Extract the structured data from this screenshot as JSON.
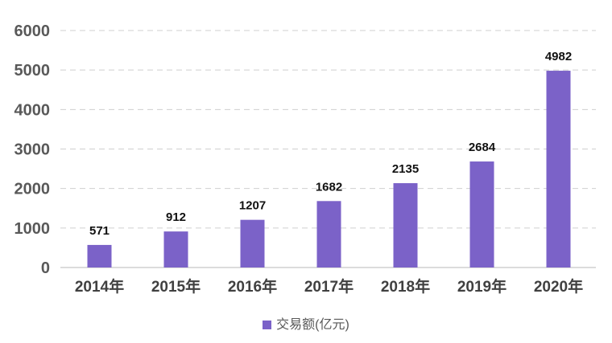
{
  "chart_data": {
    "type": "bar",
    "categories": [
      "2014年",
      "2015年",
      "2016年",
      "2017年",
      "2018年",
      "2019年",
      "2020年"
    ],
    "series": [
      {
        "name": "交易额(亿元)",
        "values": [
          571,
          912,
          1207,
          1682,
          2135,
          2684,
          4982
        ]
      }
    ],
    "yticks": [
      "0",
      "1000",
      "2000",
      "3000",
      "4000",
      "5000",
      "6000"
    ],
    "ylim": [
      0,
      6000
    ],
    "grid": true,
    "legend": "bottom",
    "color": "#7b62c8",
    "title": "",
    "xlabel": "",
    "ylabel": ""
  }
}
